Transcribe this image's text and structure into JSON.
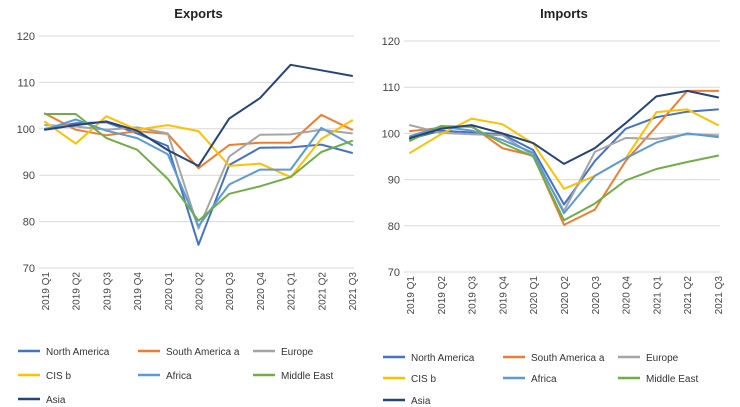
{
  "chart_data": [
    {
      "type": "line",
      "title": "Exports",
      "categories": [
        "2019 Q1",
        "2019 Q2",
        "2019 Q3",
        "2019 Q4",
        "2020 Q1",
        "2020 Q2",
        "2020 Q3",
        "2020 Q4",
        "2021 Q1",
        "2021 Q2",
        "2021 Q3"
      ],
      "yticks": [
        "70",
        "80",
        "90",
        "100",
        "110",
        "120"
      ],
      "ylim": [
        70,
        120
      ],
      "grid": true,
      "legend_position": "bottom",
      "series": [
        {
          "name": "North America",
          "color": "#4472C4",
          "values": [
            100.0,
            101.2,
            101.4,
            99.0,
            96.3,
            75.0,
            92.2,
            95.9,
            96.0,
            96.6,
            94.8
          ]
        },
        {
          "name": "South America a",
          "color": "#ED7D31",
          "values": [
            103.3,
            99.8,
            98.6,
            99.5,
            98.9,
            91.5,
            96.5,
            97.0,
            97.0,
            103.0,
            99.8
          ]
        },
        {
          "name": "Europe",
          "color": "#A5A5A5",
          "values": [
            100.8,
            100.5,
            99.8,
            100.3,
            99.0,
            78.5,
            94.0,
            98.7,
            98.8,
            99.8,
            99.0
          ]
        },
        {
          "name": "CIS b",
          "color": "#FFC000",
          "values": [
            101.5,
            96.8,
            102.7,
            99.8,
            100.8,
            99.5,
            92.0,
            92.5,
            89.6,
            97.8,
            101.8
          ]
        },
        {
          "name": "Africa",
          "color": "#5B9BD5",
          "values": [
            99.8,
            102.0,
            99.6,
            98.0,
            94.5,
            79.0,
            88.0,
            91.2,
            91.2,
            100.2,
            96.5
          ]
        },
        {
          "name": "Middle East",
          "color": "#70AD47",
          "values": [
            103.2,
            103.2,
            98.0,
            95.5,
            89.2,
            80.2,
            86.0,
            87.6,
            89.6,
            95.0,
            97.4
          ]
        },
        {
          "name": "Asia",
          "color": "#264478",
          "values": [
            99.8,
            100.8,
            101.6,
            99.6,
            95.4,
            92.0,
            102.2,
            106.6,
            113.8,
            112.6,
            111.4
          ]
        }
      ]
    },
    {
      "type": "line",
      "title": "Imports",
      "categories": [
        "2019 Q1",
        "2019 Q2",
        "2019 Q3",
        "2019 Q4",
        "2020 Q1",
        "2020 Q2",
        "2020 Q3",
        "2020 Q4",
        "2021 Q1",
        "2021 Q2",
        "2021 Q3"
      ],
      "yticks": [
        "70",
        "80",
        "90",
        "100",
        "110",
        "120"
      ],
      "ylim": [
        70,
        120
      ],
      "grid": true,
      "legend_position": "bottom",
      "series": [
        {
          "name": "North America",
          "color": "#4472C4",
          "values": [
            98.8,
            100.6,
            100.2,
            99.8,
            96.4,
            84.6,
            94.0,
            101.0,
            103.5,
            104.7,
            105.2
          ]
        },
        {
          "name": "South America a",
          "color": "#ED7D31",
          "values": [
            100.5,
            101.2,
            101.6,
            96.8,
            95.2,
            80.2,
            83.5,
            94.0,
            101.5,
            109.2,
            109.2
          ]
        },
        {
          "name": "Europe",
          "color": "#A5A5A5",
          "values": [
            101.8,
            100.1,
            99.8,
            99.6,
            95.2,
            83.2,
            96.0,
            99.0,
            98.8,
            99.8,
            99.6
          ]
        },
        {
          "name": "CIS b",
          "color": "#FFC000",
          "values": [
            95.8,
            99.8,
            103.2,
            102.0,
            97.8,
            88.0,
            90.8,
            94.6,
            104.6,
            105.2,
            101.8
          ]
        },
        {
          "name": "Africa",
          "color": "#5B9BD5",
          "values": [
            99.4,
            101.5,
            100.6,
            98.6,
            95.8,
            82.7,
            90.8,
            94.6,
            98.0,
            100.0,
            99.2
          ]
        },
        {
          "name": "Middle East",
          "color": "#70AD47",
          "values": [
            98.4,
            101.6,
            101.4,
            97.9,
            95.0,
            81.2,
            84.8,
            89.8,
            92.3,
            93.8,
            95.2
          ]
        },
        {
          "name": "Asia",
          "color": "#264478",
          "values": [
            99.0,
            101.0,
            101.8,
            100.0,
            97.9,
            93.4,
            96.8,
            102.2,
            108.0,
            109.2,
            107.8
          ]
        }
      ]
    }
  ]
}
